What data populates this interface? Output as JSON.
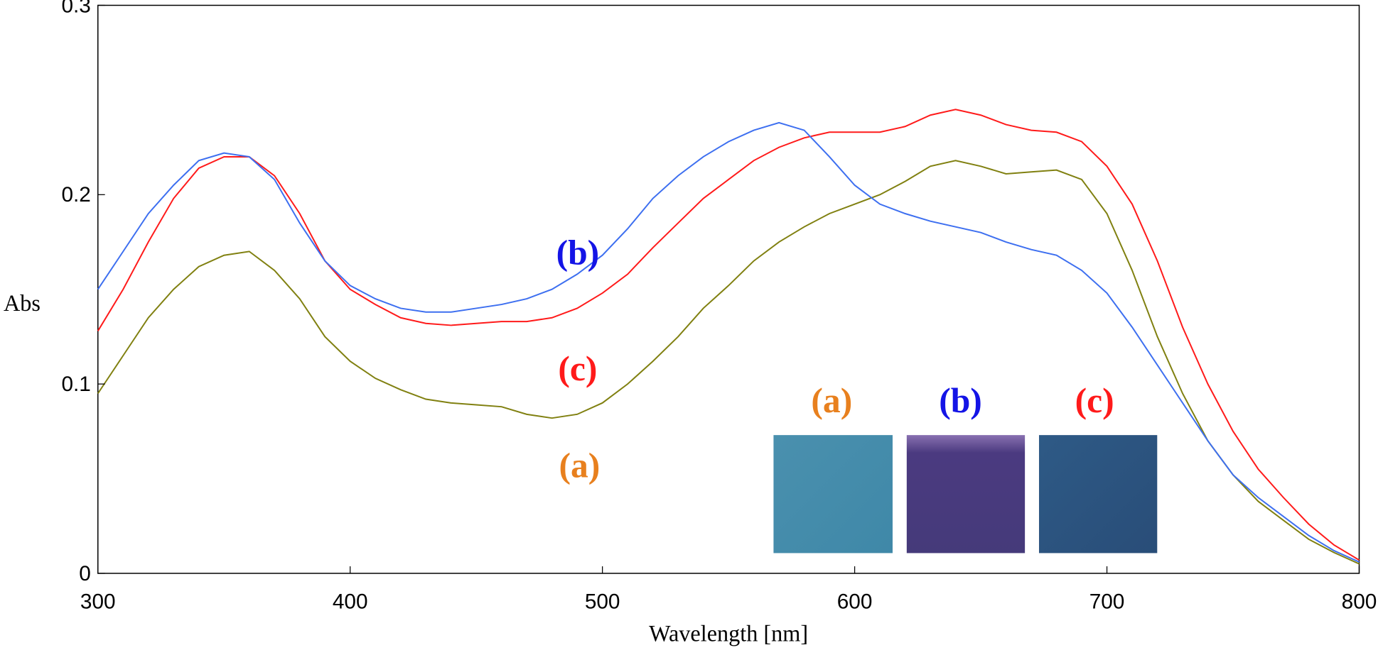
{
  "chart_data": {
    "type": "line",
    "xlabel": "Wavelength [nm]",
    "ylabel": "Abs",
    "x": [
      300,
      310,
      320,
      330,
      340,
      350,
      360,
      370,
      380,
      390,
      400,
      410,
      420,
      430,
      440,
      450,
      460,
      470,
      480,
      490,
      500,
      510,
      520,
      530,
      540,
      550,
      560,
      570,
      580,
      590,
      600,
      610,
      620,
      630,
      640,
      650,
      660,
      670,
      680,
      690,
      700,
      710,
      720,
      730,
      740,
      750,
      760,
      770,
      780,
      790,
      800
    ],
    "series": [
      {
        "color": "#808010",
        "values": [
          0.095,
          0.115,
          0.135,
          0.15,
          0.162,
          0.168,
          0.17,
          0.16,
          0.145,
          0.125,
          0.112,
          0.103,
          0.097,
          0.092,
          0.09,
          0.089,
          0.088,
          0.084,
          0.082,
          0.084,
          0.09,
          0.1,
          0.112,
          0.125,
          0.14,
          0.152,
          0.165,
          0.175,
          0.183,
          0.19,
          0.195,
          0.2,
          0.207,
          0.215,
          0.218,
          0.215,
          0.211,
          0.212,
          0.213,
          0.208,
          0.19,
          0.16,
          0.125,
          0.095,
          0.07,
          0.052,
          0.038,
          0.028,
          0.018,
          0.011,
          0.005
        ]
      },
      {
        "color": "#ff1a1a",
        "values": [
          0.128,
          0.15,
          0.175,
          0.198,
          0.214,
          0.22,
          0.22,
          0.21,
          0.19,
          0.165,
          0.15,
          0.142,
          0.135,
          0.132,
          0.131,
          0.132,
          0.133,
          0.133,
          0.135,
          0.14,
          0.148,
          0.158,
          0.172,
          0.185,
          0.198,
          0.208,
          0.218,
          0.225,
          0.23,
          0.233,
          0.233,
          0.233,
          0.236,
          0.242,
          0.245,
          0.242,
          0.237,
          0.234,
          0.233,
          0.228,
          0.215,
          0.195,
          0.165,
          0.13,
          0.1,
          0.075,
          0.055,
          0.04,
          0.026,
          0.015,
          0.007
        ]
      },
      {
        "color": "#3d6ff0",
        "values": [
          0.15,
          0.17,
          0.19,
          0.205,
          0.218,
          0.222,
          0.22,
          0.208,
          0.185,
          0.165,
          0.152,
          0.145,
          0.14,
          0.138,
          0.138,
          0.14,
          0.142,
          0.145,
          0.15,
          0.158,
          0.168,
          0.182,
          0.198,
          0.21,
          0.22,
          0.228,
          0.234,
          0.238,
          0.234,
          0.22,
          0.205,
          0.195,
          0.19,
          0.186,
          0.183,
          0.18,
          0.175,
          0.171,
          0.168,
          0.16,
          0.148,
          0.13,
          0.11,
          0.09,
          0.07,
          0.052,
          0.04,
          0.03,
          0.02,
          0.012,
          0.006
        ]
      }
    ],
    "xlim": [
      300,
      800
    ],
    "xticks": [
      300,
      400,
      500,
      600,
      700,
      800
    ],
    "ylim": [
      0,
      0.3
    ],
    "yticks": [
      0,
      0.1,
      0.2,
      0.3
    ],
    "annotations": [
      {
        "text": "(b)",
        "color": "#1414e6"
      },
      {
        "text": "(c)",
        "color": "#ff1a1a"
      },
      {
        "text": "(a)",
        "color": "#e8801e"
      },
      {
        "text": "(a)",
        "color": "#e8801e"
      },
      {
        "text": "(b)",
        "color": "#1414e6"
      },
      {
        "text": "(c)",
        "color": "#ff1a1a"
      }
    ]
  }
}
